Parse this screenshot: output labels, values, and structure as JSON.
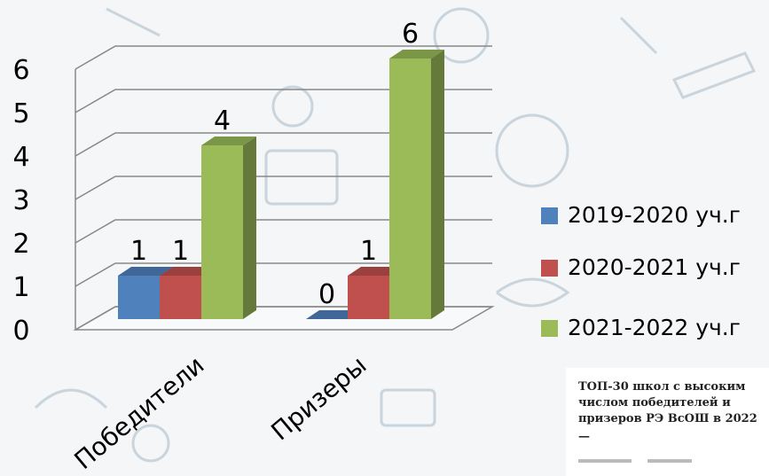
{
  "chart_data": {
    "type": "bar3d",
    "categories": [
      "Победители",
      "Призеры"
    ],
    "series": [
      {
        "name": "2019-2020 уч.г",
        "color": "#4f81bd",
        "values": [
          1,
          0
        ]
      },
      {
        "name": "2020-2021 уч.г",
        "color": "#c0504d",
        "values": [
          1,
          1
        ]
      },
      {
        "name": "2021-2022 уч.г",
        "color": "#9bbb59",
        "values": [
          4,
          6
        ]
      }
    ],
    "ylim": [
      0,
      6
    ],
    "yticks": [
      0,
      1,
      2,
      3,
      4,
      5,
      6
    ],
    "grid": true,
    "legend": "right"
  },
  "card": {
    "title_lines": [
      "ТОП-30 школ с высоким",
      "числом победителей и",
      "призеров РЭ ВсОШ в 2022"
    ],
    "dash": "—"
  }
}
